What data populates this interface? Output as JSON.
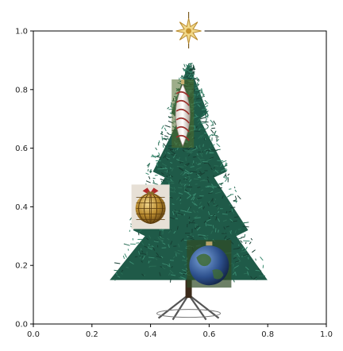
{
  "chart_data": {
    "type": "scatter",
    "title": "",
    "xlabel": "",
    "ylabel": "",
    "xlim": [
      0,
      1
    ],
    "ylim": [
      0,
      1
    ],
    "grid": false,
    "x_ticks": [
      0.0,
      0.2,
      0.4,
      0.6,
      0.8,
      1.0
    ],
    "y_ticks": [
      0.0,
      0.2,
      0.4,
      0.6,
      0.8,
      1.0
    ],
    "x_tick_labels": [
      "0.0",
      "0.2",
      "0.4",
      "0.6",
      "0.8",
      "1.0"
    ],
    "y_tick_labels": [
      "0.0",
      "0.2",
      "0.4",
      "0.6",
      "0.8",
      "1.0"
    ],
    "image_elements": [
      {
        "name": "christmas-tree",
        "icon": "tree-icon",
        "x_range": [
          0.25,
          0.81
        ],
        "y_range": [
          0.02,
          0.89
        ]
      },
      {
        "name": "star-topper",
        "icon": "star-icon",
        "x": 0.53,
        "y": 1.0
      },
      {
        "name": "glass-ornament",
        "icon": "ornament-icon",
        "x": 0.51,
        "y": 0.71
      },
      {
        "name": "gold-ornament",
        "icon": "ornament-icon",
        "x": 0.4,
        "y": 0.4
      },
      {
        "name": "earth-ornament",
        "icon": "globe-icon",
        "x": 0.6,
        "y": 0.2
      }
    ],
    "colors": {
      "tree": "#1f5a48",
      "tree_highlight": "#3a8a70",
      "gold": "#b88a2e",
      "earth_blue": "#2c4f8c",
      "earth_green": "#3f6b34",
      "stand": "#555555"
    }
  }
}
